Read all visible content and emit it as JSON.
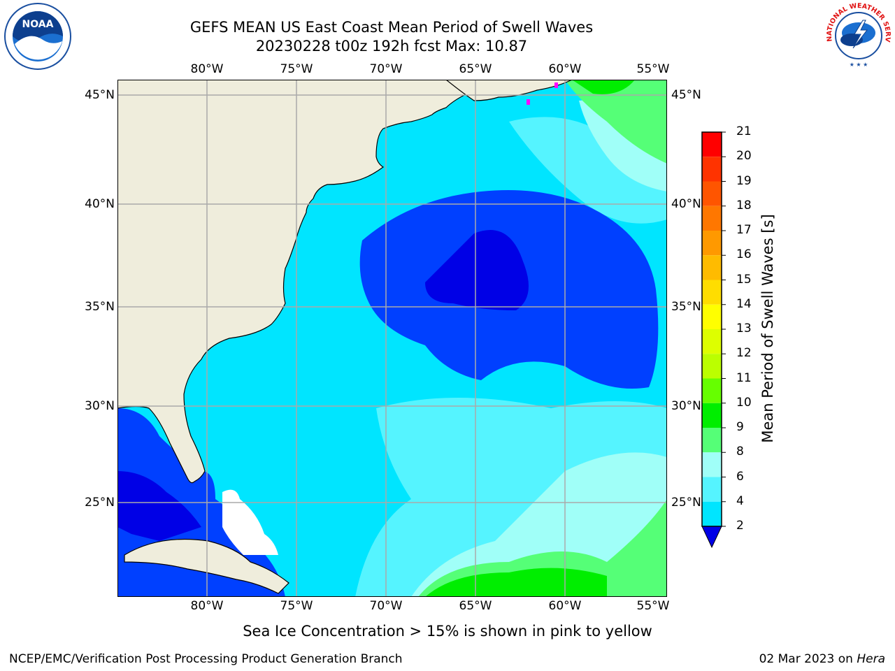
{
  "header": {
    "title": "GEFS MEAN US East Coast Mean Period of Swell Waves",
    "subtitle": "20230228 t00z 192h fcst   Max: 10.87"
  },
  "logos": {
    "noaa_text": "NOAA",
    "noaa_ring": "NATIONAL OCEANIC AND ATMOSPHERIC ADMINISTRATION · U.S. DEPARTMENT OF COMMERCE",
    "nws_ring": "NATIONAL WEATHER SERVICE"
  },
  "map": {
    "lon_labels": [
      "80°W",
      "75°W",
      "70°W",
      "65°W",
      "60°W",
      "55°W"
    ],
    "lat_labels": [
      "45°N",
      "40°N",
      "35°N",
      "30°N",
      "25°N"
    ],
    "colors": {
      "land": "#efeddc",
      "c2_4": "#0040ff",
      "c4_6": "#00e5ff",
      "c6_8": "#55f4ff",
      "c8_9": "#a0fff8",
      "c9_10": "#55ff77",
      "c10_11": "#00ee00",
      "below_2": "#0000e6",
      "grid": "#aaaaaa"
    }
  },
  "colorbar": {
    "label": "Mean Period of Swell Waves [s]",
    "ticks": [
      "21",
      "20",
      "19",
      "18",
      "17",
      "16",
      "15",
      "14",
      "13",
      "12",
      "11",
      "10",
      "9",
      "8",
      "6",
      "4",
      "2"
    ],
    "colors_top_to_bottom": [
      "#ff0000",
      "#ff3300",
      "#ff5500",
      "#ff7700",
      "#ff9900",
      "#ffbb00",
      "#ffdd00",
      "#ffff00",
      "#ddff00",
      "#bbff00",
      "#66ff00",
      "#00ee00",
      "#55ff77",
      "#a0fff8",
      "#55f4ff",
      "#00e5ff",
      "#0040ff"
    ],
    "extend_color": "#0000e6"
  },
  "note": "Sea Ice Concentration > 15% is shown in pink to yellow",
  "footer": {
    "left": "NCEP/EMC/Verification Post Processing Product Generation Branch",
    "date": "02 Mar 2023 on ",
    "machine": "Hera"
  }
}
